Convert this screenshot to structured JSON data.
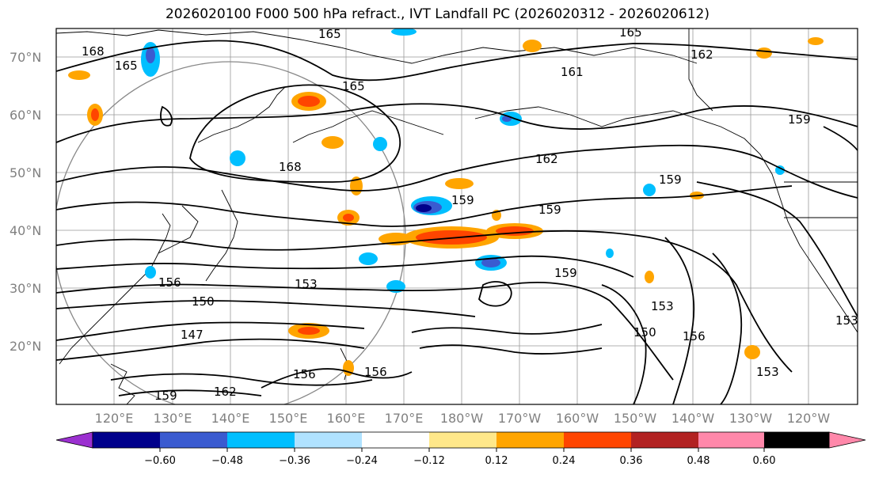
{
  "title": "2026020100 F000 500 hPa refract., IVT Landfall PC (2026020312 - 2026020612)",
  "map": {
    "lat_labels": [
      "70°N",
      "60°N",
      "50°N",
      "40°N",
      "30°N",
      "20°N"
    ],
    "lon_labels": [
      "120°E",
      "130°E",
      "140°E",
      "150°E",
      "160°E",
      "170°E",
      "180°W",
      "170°W",
      "160°W",
      "150°W",
      "140°W",
      "130°W",
      "120°W"
    ],
    "contour_labels": [
      "168",
      "165",
      "165",
      "165",
      "162",
      "161",
      "159",
      "168",
      "165",
      "162",
      "159",
      "159",
      "159",
      "156",
      "153",
      "150",
      "147",
      "159",
      "153",
      "150",
      "156",
      "153",
      "156",
      "156",
      "153",
      "162",
      "159"
    ]
  },
  "colorbar": {
    "ticks": [
      "−0.60",
      "−0.48",
      "−0.36",
      "−0.24",
      "−0.12",
      "0.12",
      "0.24",
      "0.36",
      "0.48",
      "0.60"
    ],
    "colors": [
      "#9b30d0",
      "#00008b",
      "#3a5bd0",
      "#00bfff",
      "#b0e2ff",
      "#ffffff",
      "#ffe88a",
      "#ffa500",
      "#ff4500",
      "#b22222",
      "#ff88aa"
    ]
  }
}
